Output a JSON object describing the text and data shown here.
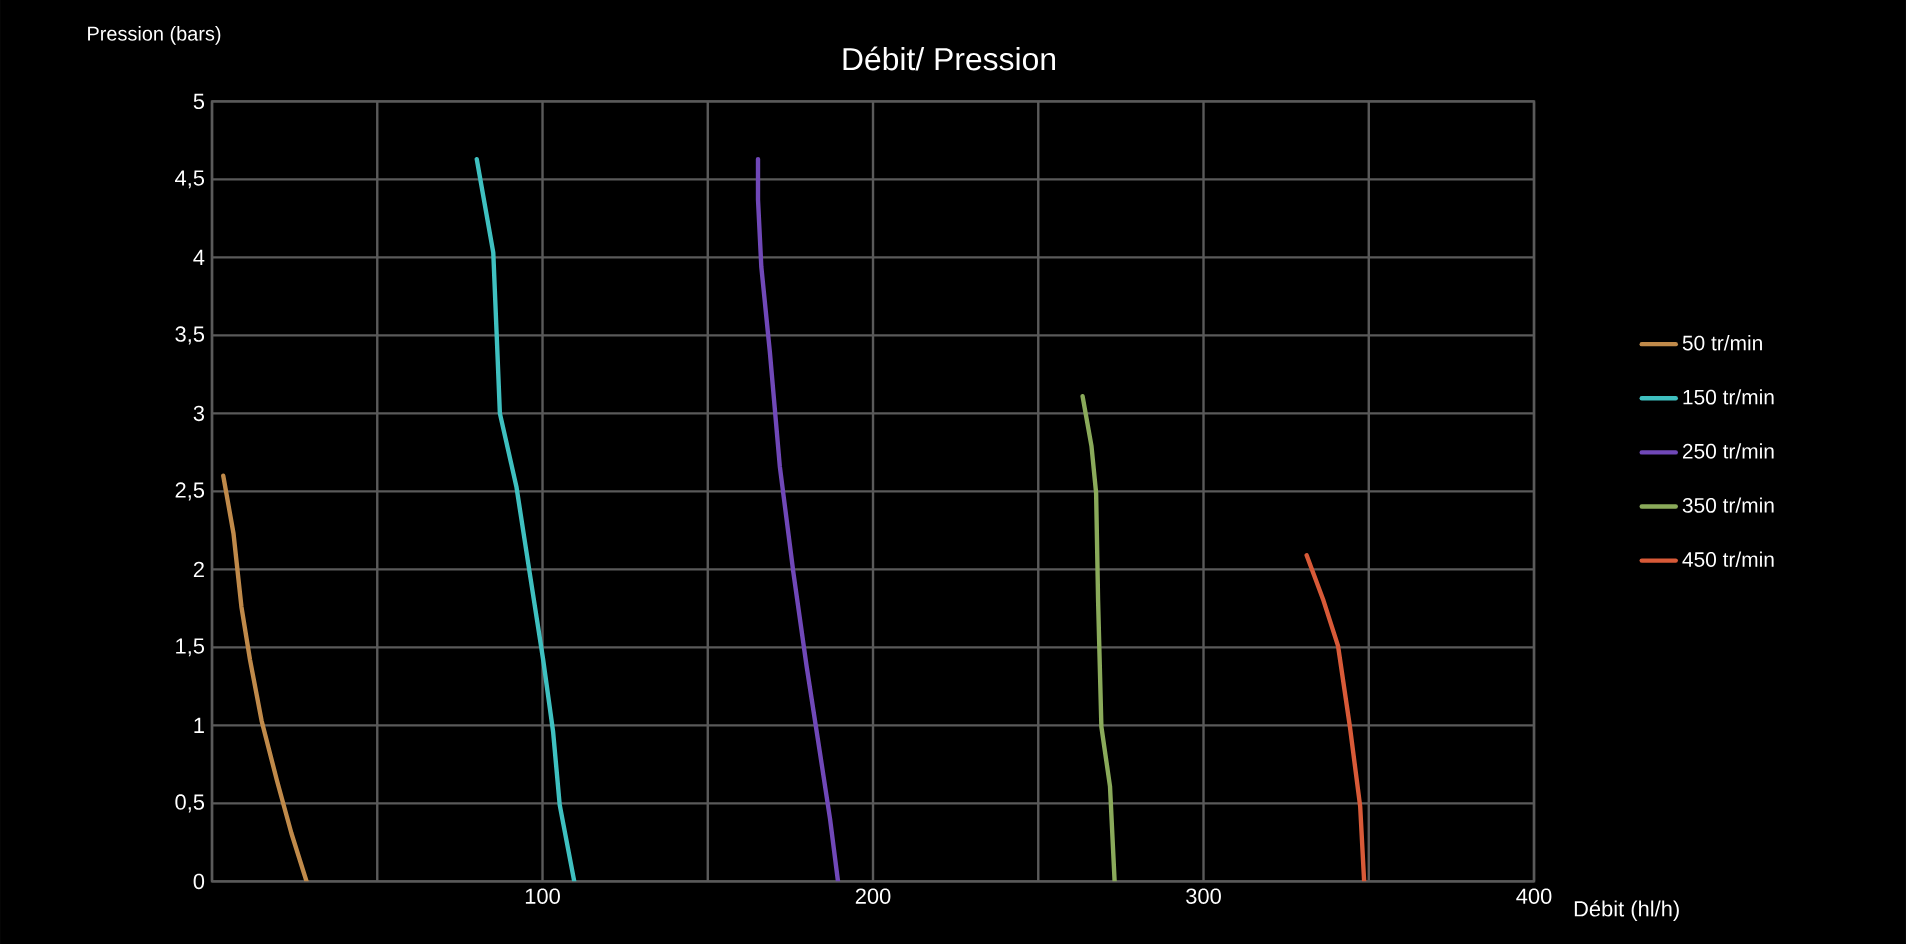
{
  "chart_data": {
    "type": "line",
    "title": "Débit/ Pression",
    "xlabel": "Débit (hl/h)",
    "ylabel": "Pression (bars)",
    "xlim": [
      0,
      400
    ],
    "ylim": [
      0,
      5
    ],
    "xticks": [
      {
        "value": 0,
        "label": null
      },
      {
        "value": 50,
        "label": null
      },
      100,
      {
        "value": 150,
        "label": null
      },
      200,
      {
        "value": 250,
        "label": null
      },
      300,
      {
        "value": 350,
        "label": null
      },
      400
    ],
    "yticks": [
      0,
      {
        "value": 0.5,
        "label": "0,5"
      },
      1,
      {
        "value": 1.5,
        "label": "1,5"
      },
      2,
      {
        "value": 2.5,
        "label": "2,5"
      },
      3,
      {
        "value": 3.5,
        "label": "3,5"
      },
      4,
      {
        "value": 4.5,
        "label": "4,5"
      },
      5
    ],
    "grid": true,
    "legend": "right",
    "series": [
      {
        "name": "50 tr/min",
        "color": "#c08a4a",
        "x": [
          3.4,
          6.5,
          8.9,
          11.5,
          15.0,
          19.6,
          24.0,
          28.6
        ],
        "values": [
          2.6,
          2.23,
          1.76,
          1.42,
          1.03,
          0.65,
          0.31,
          0
        ]
      },
      {
        "name": "150 tr/min",
        "color": "#3fc0c0",
        "x": [
          80.1,
          85.1,
          86.1,
          87.1,
          92.1,
          96.1,
          100.2,
          103.2,
          105.2,
          109.6
        ],
        "values": [
          4.63,
          4.03,
          3.52,
          3.0,
          2.53,
          1.98,
          1.42,
          0.96,
          0.49,
          0
        ]
      },
      {
        "name": "250 tr/min",
        "color": "#7048b8",
        "x": [
          165.2,
          165.2,
          166.2,
          168.8,
          171.8,
          175.9,
          179.9,
          183.9,
          187.0,
          189.4
        ],
        "values": [
          4.63,
          4.37,
          3.94,
          3.39,
          2.66,
          1.98,
          1.38,
          0.83,
          0.4,
          0
        ]
      },
      {
        "name": "350 tr/min",
        "color": "#8aaa5a",
        "x": [
          263.4,
          266.1,
          267.5,
          268.1,
          269.1,
          271.7,
          273.1
        ],
        "values": [
          3.11,
          2.79,
          2.49,
          1.8,
          0.99,
          0.61,
          0
        ]
      },
      {
        "name": "450 tr/min",
        "color": "#d85a38",
        "x": [
          331.2,
          336.3,
          340.7,
          344.3,
          347.4,
          348.6
        ],
        "values": [
          2.09,
          1.8,
          1.51,
          0.99,
          0.48,
          0
        ]
      }
    ]
  }
}
